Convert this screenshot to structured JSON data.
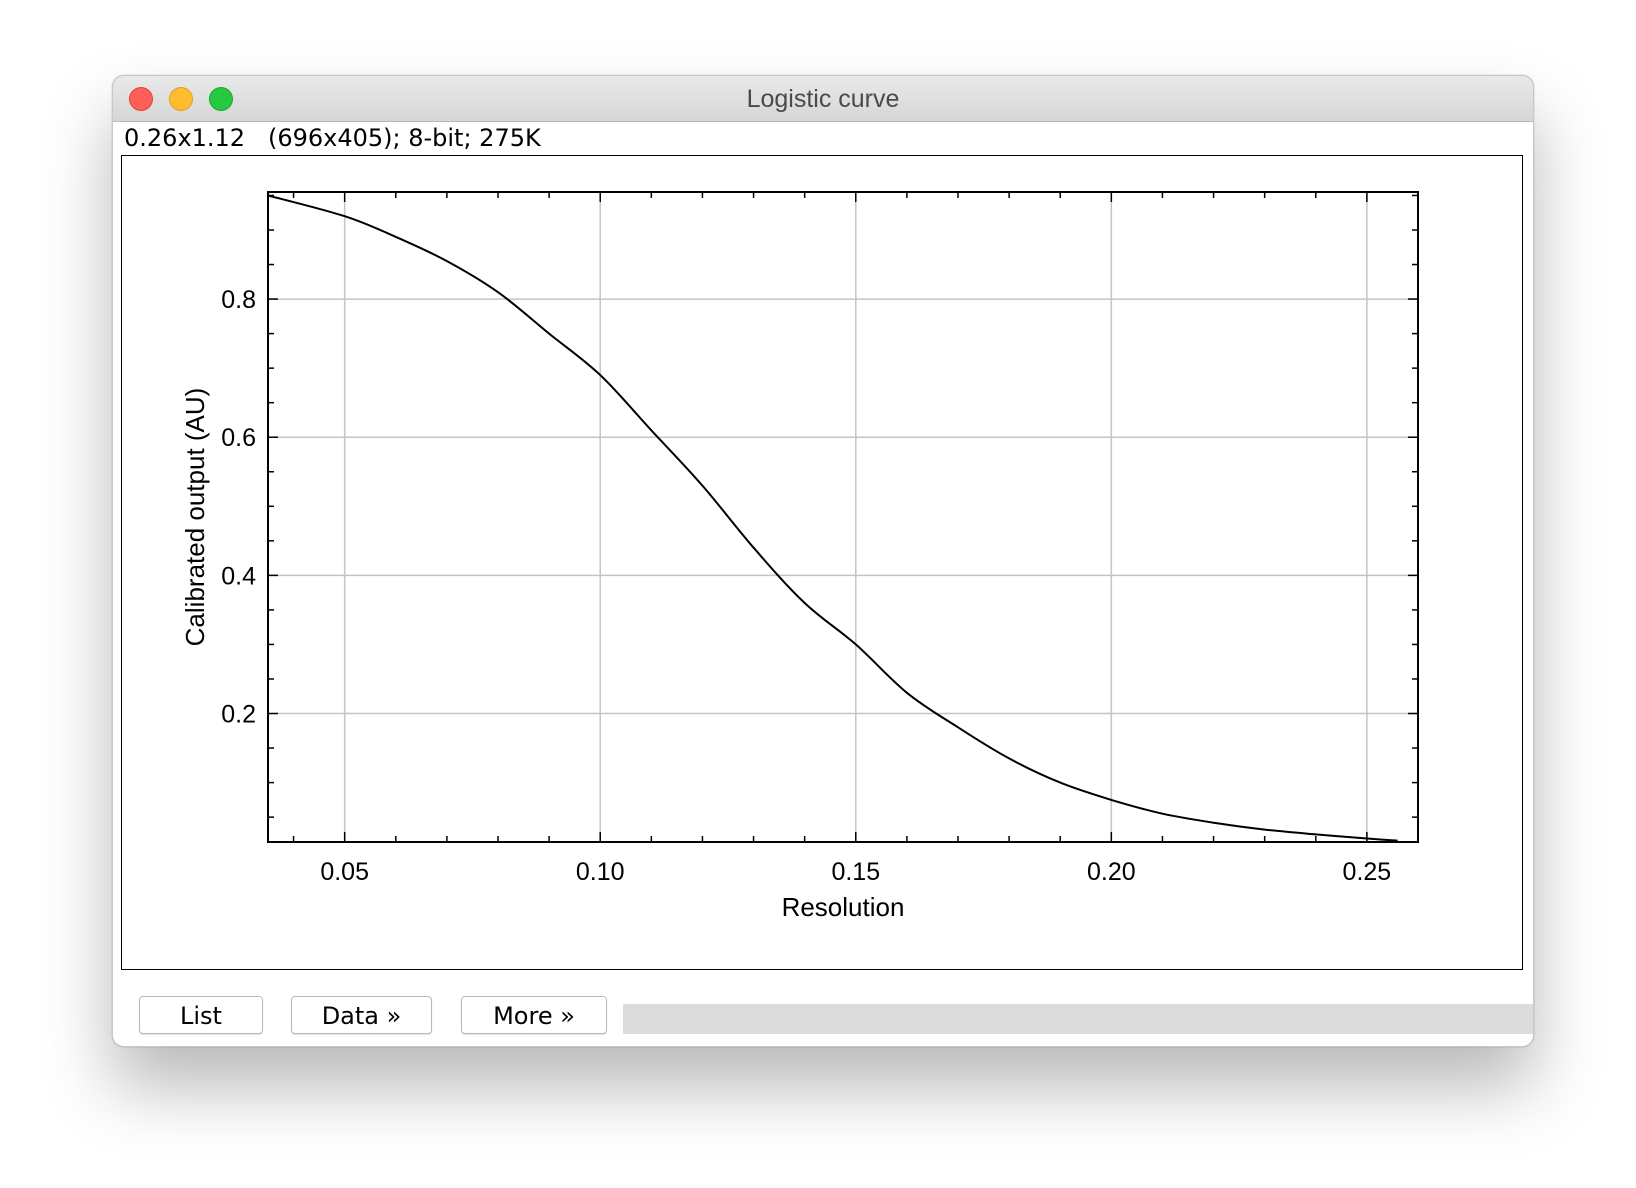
{
  "window": {
    "title": "Logistic curve",
    "info_line": "0.26x1.12   (696x405); 8-bit; 275K"
  },
  "buttons": {
    "list_label": "List",
    "data_label": "Data »",
    "more_label": "More »"
  },
  "colors": {
    "close": "#fe5f57",
    "minimize": "#febc2e",
    "zoom": "#28c840",
    "grid": "#c4c4c4",
    "curve": "#000000"
  },
  "icons": [
    "close-icon",
    "minimize-icon",
    "zoom-icon"
  ],
  "chart_data": {
    "type": "line",
    "title": "",
    "xlabel": "Resolution",
    "ylabel": "Calibrated output (AU)",
    "xlim": [
      0.035,
      0.26
    ],
    "ylim": [
      0.014,
      0.955
    ],
    "grid": true,
    "xticks": [
      0.05,
      0.1,
      0.15,
      0.2,
      0.25
    ],
    "xtick_labels": [
      "0.05",
      "0.10",
      "0.15",
      "0.20",
      "0.25"
    ],
    "yticks": [
      0.2,
      0.4,
      0.6,
      0.8
    ],
    "ytick_labels": [
      "0.2",
      "0.4",
      "0.6",
      "0.8"
    ],
    "series": [
      {
        "x": [
          0.035,
          0.05,
          0.06,
          0.07,
          0.08,
          0.09,
          0.1,
          0.11,
          0.12,
          0.13,
          0.14,
          0.15,
          0.16,
          0.17,
          0.18,
          0.19,
          0.2,
          0.21,
          0.22,
          0.23,
          0.24,
          0.25,
          0.256
        ],
        "y": [
          0.95,
          0.92,
          0.89,
          0.855,
          0.81,
          0.75,
          0.69,
          0.61,
          0.53,
          0.44,
          0.36,
          0.3,
          0.23,
          0.18,
          0.135,
          0.1,
          0.075,
          0.055,
          0.042,
          0.032,
          0.025,
          0.019,
          0.016
        ]
      }
    ]
  }
}
